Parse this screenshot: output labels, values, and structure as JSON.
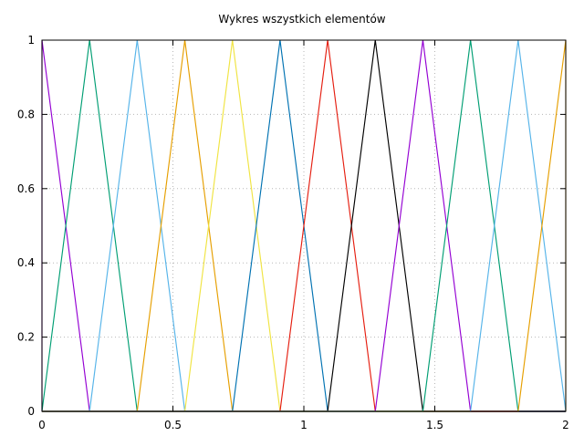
{
  "chart_data": {
    "type": "line",
    "title": "Wykres wszystkich elementów",
    "xlabel": "",
    "ylabel": "",
    "xlim": [
      0,
      2
    ],
    "ylim": [
      0,
      1
    ],
    "grid": true,
    "legend": "none",
    "x_ticks": [
      "0",
      "0.5",
      "1",
      "1.5",
      "2"
    ],
    "y_ticks": [
      "0",
      "0.2",
      "0.4",
      "0.6",
      "0.8",
      "1"
    ],
    "series": [
      {
        "color": "#9400d3",
        "x": [
          0.0,
          0.0,
          0.1818,
          2.0
        ],
        "y": [
          0,
          1,
          0,
          0
        ]
      },
      {
        "color": "#009e73",
        "x": [
          0.0,
          0.1818,
          0.3636,
          2.0
        ],
        "y": [
          0,
          1,
          0,
          0
        ]
      },
      {
        "color": "#56b4e9",
        "x": [
          0.0,
          0.1818,
          0.3636,
          0.5455,
          2.0
        ],
        "y": [
          0,
          0,
          1,
          0,
          0
        ]
      },
      {
        "color": "#e69f00",
        "x": [
          0.0,
          0.3636,
          0.5455,
          0.7273,
          2.0
        ],
        "y": [
          0,
          0,
          1,
          0,
          0
        ]
      },
      {
        "color": "#f0e442",
        "x": [
          0.0,
          0.5455,
          0.7273,
          0.9091,
          2.0
        ],
        "y": [
          0,
          0,
          1,
          0,
          0
        ]
      },
      {
        "color": "#0072b2",
        "x": [
          0.0,
          0.7273,
          0.9091,
          1.0909,
          2.0
        ],
        "y": [
          0,
          0,
          1,
          0,
          0
        ]
      },
      {
        "color": "#e51e10",
        "x": [
          0.0,
          0.9091,
          1.0909,
          1.2727,
          2.0
        ],
        "y": [
          0,
          0,
          1,
          0,
          0
        ]
      },
      {
        "color": "#000000",
        "x": [
          0.0,
          1.0909,
          1.2727,
          1.4545,
          2.0
        ],
        "y": [
          0,
          0,
          1,
          0,
          0
        ]
      },
      {
        "color": "#9400d3",
        "x": [
          0.0,
          1.2727,
          1.4545,
          1.6364,
          2.0
        ],
        "y": [
          0,
          0,
          1,
          0,
          0
        ]
      },
      {
        "color": "#009e73",
        "x": [
          0.0,
          1.4545,
          1.6364,
          1.8182,
          2.0
        ],
        "y": [
          0,
          0,
          1,
          0,
          0
        ]
      },
      {
        "color": "#56b4e9",
        "x": [
          0.0,
          1.6364,
          1.8182,
          2.0
        ],
        "y": [
          0,
          0,
          1,
          0
        ]
      },
      {
        "color": "#e69f00",
        "x": [
          0.0,
          1.8182,
          2.0,
          2.0
        ],
        "y": [
          0,
          0,
          1,
          0
        ]
      }
    ]
  }
}
